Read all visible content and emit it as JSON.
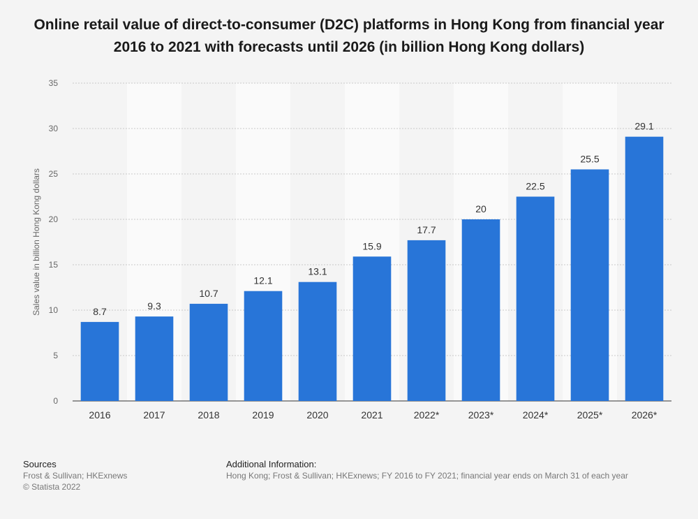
{
  "chart_data": {
    "type": "bar",
    "title": "Online retail value of direct-to-consumer (D2C) platforms in Hong Kong from financial year 2016 to 2021 with forecasts until 2026 (in billion Hong Kong dollars)",
    "categories": [
      "2016",
      "2017",
      "2018",
      "2019",
      "2020",
      "2021",
      "2022*",
      "2023*",
      "2024*",
      "2025*",
      "2026*"
    ],
    "values": [
      8.7,
      9.3,
      10.7,
      12.1,
      13.1,
      15.9,
      17.7,
      20,
      22.5,
      25.5,
      29.1
    ],
    "value_labels": [
      "8.7",
      "9.3",
      "10.7",
      "12.1",
      "13.1",
      "15.9",
      "17.7",
      "20",
      "22.5",
      "25.5",
      "29.1"
    ],
    "xlabel": "",
    "ylabel": "Sales value in billion Hong Kong dollars",
    "ylim": [
      0,
      35
    ],
    "yticks": [
      0,
      5,
      10,
      15,
      20,
      25,
      30,
      35
    ],
    "grid": true,
    "bar_color": "#2875d8"
  },
  "footer": {
    "sources_heading": "Sources",
    "sources_line1": "Frost & Sullivan; HKExnews",
    "sources_line2": "© Statista 2022",
    "additional_heading": "Additional Information:",
    "additional_text": "Hong Kong; Frost & Sullivan; HKExnews; FY 2016 to FY 2021; financial year ends on March 31 of each year"
  }
}
